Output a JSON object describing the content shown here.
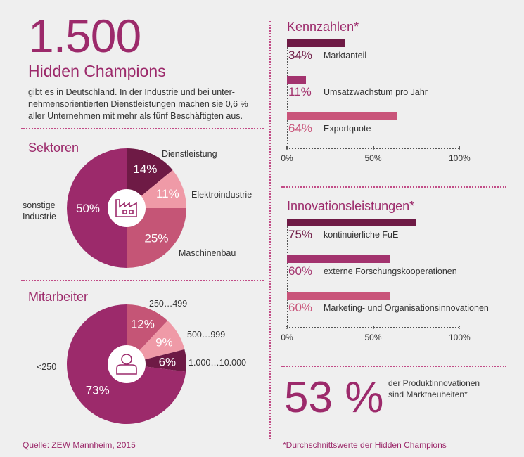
{
  "headline": {
    "number": "1.500",
    "subtitle": "Hidden Champions",
    "text_line1": "gibt es in Deutschland. In der Industrie und bei unter-",
    "text_line2": "nehmensorientierten Dienstleistungen machen sie 0,6 %",
    "text_line3": "aller Unternehmen mit mehr als fünf Beschäftigten aus."
  },
  "colors": {
    "plum": "#9c2a6b",
    "dark": "#6e1a45",
    "pink": "#ef9aa7",
    "rose": "#c55576",
    "bar_mid": "#a3336e",
    "bar_light": "#c9547a",
    "background": "#efefef"
  },
  "icons": {
    "sektoren_center": "factory-icon",
    "mitarbeiter_center": "person-icon"
  },
  "footer": {
    "source": "Quelle: ZEW Mannheim, 2015",
    "note": "*Durchschnittswerte der Hidden Champions"
  },
  "bottom_stat": {
    "value": "53 %",
    "text_line1": "der Produktinnovationen",
    "text_line2": "sind Marktneuheiten*"
  },
  "chart_data": [
    {
      "type": "pie",
      "title": "Sektoren",
      "labels": [
        "Dienstleistung",
        "Elektroindustrie",
        "Maschinenbau",
        "sonstige Industrie"
      ],
      "values": [
        14,
        11,
        25,
        50
      ],
      "value_labels": [
        "14%",
        "11%",
        "25%",
        "50%"
      ]
    },
    {
      "type": "pie",
      "title": "Mitarbeiter",
      "labels": [
        "250…499",
        "500…999",
        "1.000…10.000",
        "<250"
      ],
      "values": [
        12,
        9,
        6,
        73
      ],
      "value_labels": [
        "12%",
        "9%",
        "6%",
        "73%"
      ]
    },
    {
      "type": "bar",
      "title": "Kennzahlen*",
      "categories": [
        "Marktanteil",
        "Umsatzwachstum pro Jahr",
        "Exportquote"
      ],
      "values": [
        34,
        11,
        64
      ],
      "value_labels": [
        "34%",
        "11%",
        "64%"
      ],
      "xlim": [
        0,
        100
      ],
      "ticks": [
        "0%",
        "50%",
        "100%"
      ]
    },
    {
      "type": "bar",
      "title": "Innovationsleistungen*",
      "categories": [
        "kontinuierliche FuE",
        "externe Forschungskooperationen",
        "Marketing- und Organisationsinnovationen"
      ],
      "values": [
        75,
        60,
        60
      ],
      "value_labels": [
        "75%",
        "60%",
        "60%"
      ],
      "xlim": [
        0,
        100
      ],
      "ticks": [
        "0%",
        "50%",
        "100%"
      ]
    }
  ]
}
